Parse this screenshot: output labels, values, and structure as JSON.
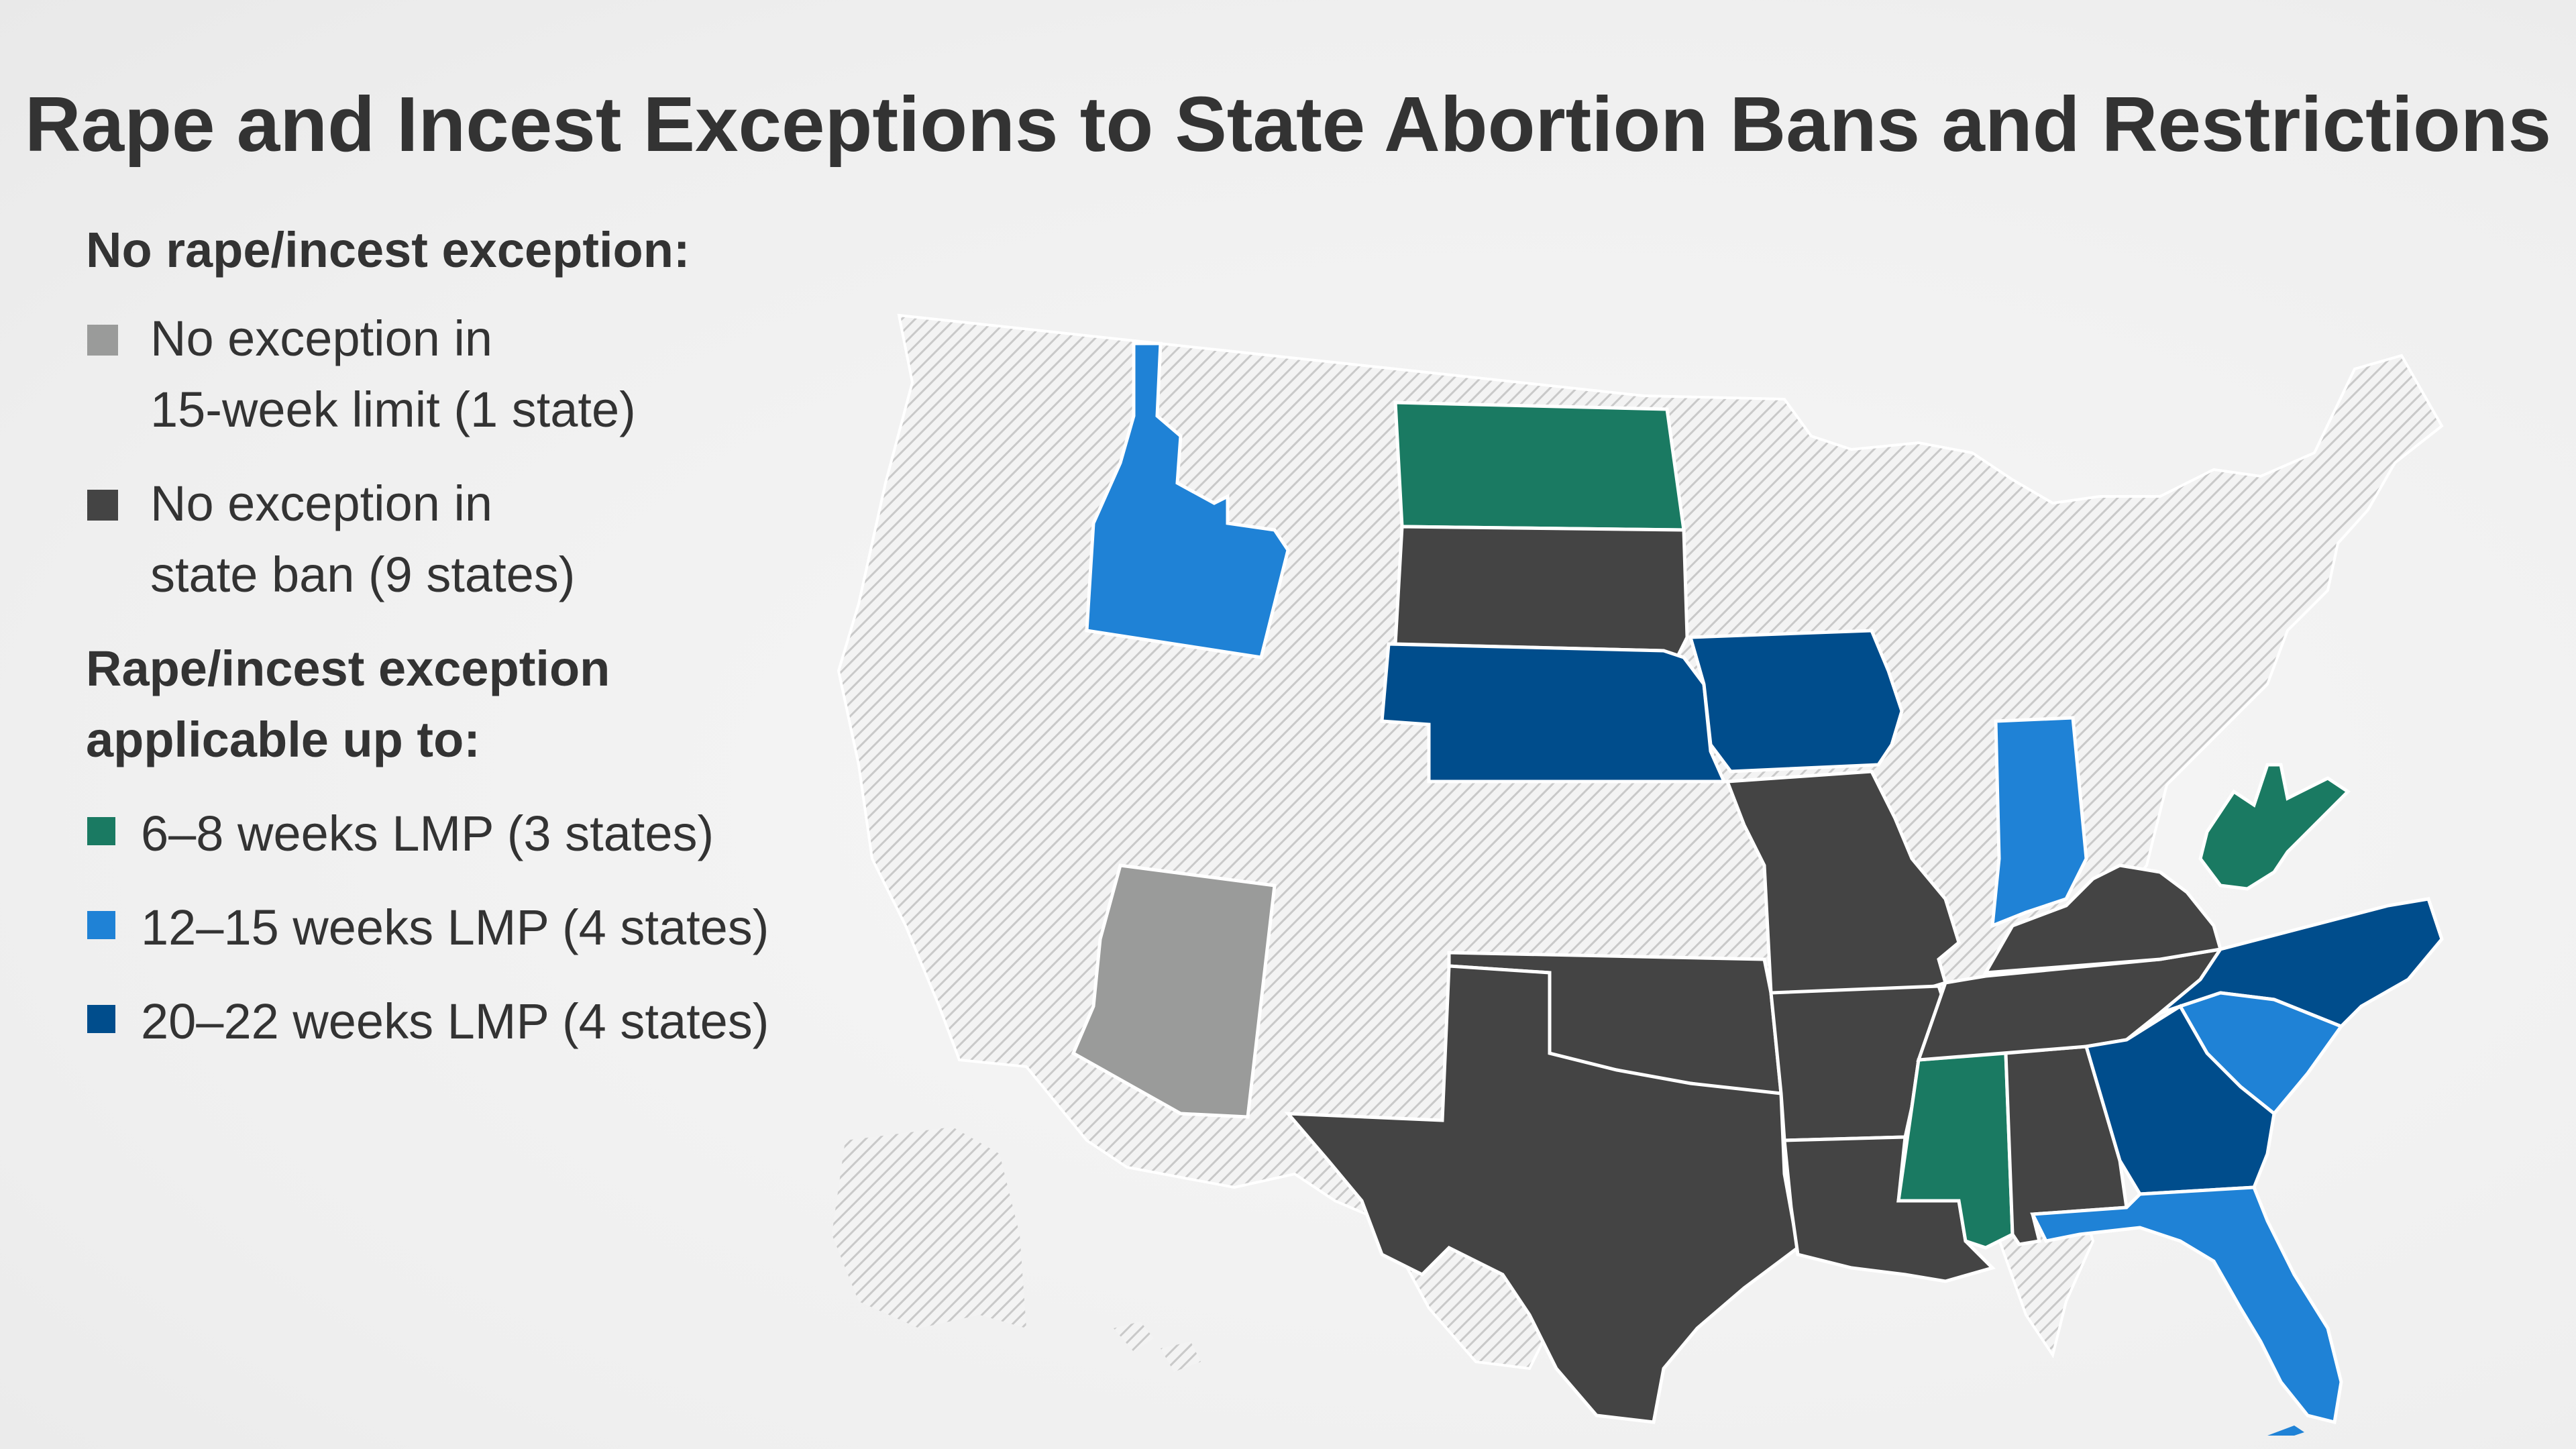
{
  "title": "Rape and Incest Exceptions to State Abortion Bans and Restrictions",
  "legend": {
    "group1_heading": "No rape/incest exception:",
    "items_no_exception": [
      {
        "line1": "No exception in",
        "line2": "15-week limit (1 state)",
        "color": "#9a9b9a"
      },
      {
        "line1": "No exception in",
        "line2": "state ban (9 states)",
        "color": "#444444"
      }
    ],
    "group2_heading_line1": "Rape/incest exception",
    "group2_heading_line2": "applicable up to:",
    "items_exception": [
      {
        "label": "6–8 weeks LMP (3 states)",
        "color": "#1a7a62"
      },
      {
        "label": "12–15 weeks LMP (4 states)",
        "color": "#1f82d6"
      },
      {
        "label": "20–22 weeks LMP (4 states)",
        "color": "#004d8c"
      }
    ]
  },
  "map": {
    "colors": {
      "no_exception_15_week": "#9a9b9a",
      "no_exception_ban": "#444444",
      "weeks_6_8": "#1a7a62",
      "weeks_12_15": "#1f82d6",
      "weeks_20_22": "#004d8c",
      "no_policy_hatch": "#cfcfcf",
      "border": "#ffffff"
    },
    "categories": {
      "no_exception_15_week": [
        "Arizona"
      ],
      "no_exception_ban": [
        "South Dakota",
        "Missouri",
        "Arkansas",
        "Oklahoma",
        "Texas",
        "Louisiana",
        "Alabama",
        "Tennessee",
        "Kentucky"
      ],
      "weeks_6_8": [
        "North Dakota",
        "Mississippi",
        "West Virginia"
      ],
      "weeks_12_15": [
        "Idaho",
        "Indiana",
        "South Carolina",
        "Florida"
      ],
      "weeks_20_22": [
        "Nebraska",
        "Iowa",
        "Georgia",
        "North Carolina"
      ]
    }
  }
}
